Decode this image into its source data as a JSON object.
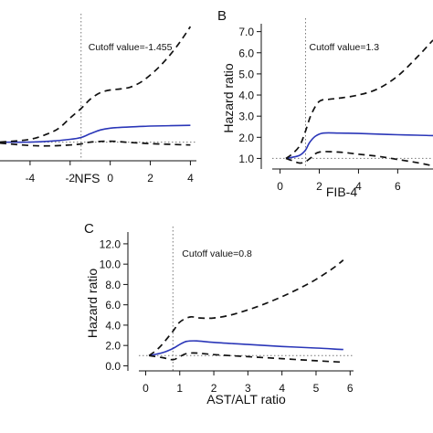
{
  "chart_data": [
    {
      "panel_label": "",
      "type": "line",
      "title": "",
      "xlabel": "NFS",
      "ylabel": "",
      "xlim": [
        -5.5,
        4.3
      ],
      "ylim": [
        0,
        7.4
      ],
      "xticks": [
        -4,
        -2,
        0,
        2,
        4
      ],
      "yticks": [],
      "cutoff": {
        "x": -1.455,
        "label": "Cutoff value=-1.455"
      },
      "reference_y": 1.0,
      "series": [
        {
          "role": "estimate",
          "x": [
            -5.5,
            -4,
            -3,
            -2,
            -1.455,
            -1,
            -0.5,
            0,
            1,
            2,
            3,
            4
          ],
          "values": [
            1.0,
            1.0,
            1.05,
            1.15,
            1.25,
            1.45,
            1.65,
            1.75,
            1.82,
            1.86,
            1.88,
            1.9
          ]
        },
        {
          "role": "upper",
          "x": [
            -5.5,
            -4,
            -3,
            -2.5,
            -2,
            -1.455,
            -1,
            -0.5,
            0,
            0.5,
            1,
            1.5,
            2,
            2.5,
            3,
            3.5,
            4
          ],
          "values": [
            1.0,
            1.15,
            1.5,
            1.8,
            2.3,
            2.8,
            3.3,
            3.65,
            3.8,
            3.85,
            3.95,
            4.2,
            4.6,
            5.1,
            5.7,
            6.4,
            7.2
          ]
        },
        {
          "role": "lower",
          "x": [
            -5.5,
            -4,
            -3,
            -2,
            -1.455,
            -1,
            0,
            1,
            2,
            3,
            4
          ],
          "values": [
            0.95,
            0.82,
            0.8,
            0.85,
            0.9,
            1.0,
            1.05,
            0.98,
            0.92,
            0.88,
            0.85
          ]
        }
      ]
    },
    {
      "panel_label": "B",
      "type": "line",
      "title": "",
      "xlabel": "FIB-4",
      "ylabel": "Hazard ratio",
      "xlim": [
        -0.4,
        7.8
      ],
      "ylim": [
        0.5,
        7.2
      ],
      "xticks": [
        0,
        2,
        4,
        6
      ],
      "yticks": [
        1.0,
        2.0,
        3.0,
        4.0,
        5.0,
        6.0,
        7.0
      ],
      "ytick_labels": [
        "1.0",
        "2.0",
        "3.0",
        "4.0",
        "5.0",
        "6.0",
        "7.0"
      ],
      "cutoff": {
        "x": 1.3,
        "label": "Cutoff value=1.3"
      },
      "reference_y": 1.0,
      "series": [
        {
          "role": "estimate",
          "x": [
            0.3,
            0.6,
            1.0,
            1.3,
            1.5,
            1.8,
            2.2,
            3,
            4,
            5,
            6,
            7,
            7.8
          ],
          "values": [
            1.0,
            1.05,
            1.15,
            1.4,
            1.75,
            2.05,
            2.2,
            2.2,
            2.18,
            2.15,
            2.12,
            2.1,
            2.08
          ]
        },
        {
          "role": "upper",
          "x": [
            0.3,
            0.6,
            1.0,
            1.3,
            1.6,
            2.0,
            2.5,
            3,
            4,
            5,
            6,
            7,
            7.8
          ],
          "values": [
            1.0,
            1.2,
            1.6,
            2.3,
            3.1,
            3.7,
            3.8,
            3.85,
            4.0,
            4.3,
            4.9,
            5.8,
            6.6
          ]
        },
        {
          "role": "lower",
          "x": [
            0.3,
            0.6,
            1.0,
            1.3,
            1.6,
            2.0,
            3,
            4,
            5,
            6,
            7,
            7.8
          ],
          "values": [
            1.0,
            0.9,
            0.78,
            0.85,
            1.05,
            1.3,
            1.3,
            1.2,
            1.1,
            0.95,
            0.8,
            0.65
          ]
        }
      ]
    },
    {
      "panel_label": "C",
      "type": "line",
      "title": "",
      "xlabel": "AST/ALT ratio",
      "ylabel": "Hazard ratio",
      "xlim": [
        -0.2,
        6.1
      ],
      "ylim": [
        -0.5,
        12.8
      ],
      "xticks": [
        0,
        1,
        2,
        3,
        4,
        5,
        6
      ],
      "yticks": [
        0,
        2,
        4,
        6,
        8,
        10,
        12
      ],
      "ytick_labels": [
        "0.0",
        "2.0",
        "4.0",
        "6.0",
        "8.0",
        "10.0",
        "12.0"
      ],
      "cutoff": {
        "x": 0.8,
        "label": "Cutoff value=0.8"
      },
      "reference_y": 1.0,
      "series": [
        {
          "role": "estimate",
          "x": [
            0.1,
            0.5,
            0.8,
            1.0,
            1.2,
            1.5,
            2,
            3,
            4,
            5,
            5.8
          ],
          "values": [
            1.0,
            1.3,
            1.7,
            2.1,
            2.4,
            2.45,
            2.3,
            2.1,
            1.9,
            1.75,
            1.6
          ]
        },
        {
          "role": "upper",
          "x": [
            0.1,
            0.4,
            0.8,
            1.0,
            1.3,
            1.6,
            2.0,
            2.5,
            3.0,
            3.5,
            4.0,
            4.5,
            5.0,
            5.5,
            5.8
          ],
          "values": [
            1.0,
            1.8,
            3.4,
            4.3,
            4.8,
            4.7,
            4.7,
            5.0,
            5.5,
            6.1,
            6.8,
            7.6,
            8.5,
            9.6,
            10.4
          ]
        },
        {
          "role": "lower",
          "x": [
            0.1,
            0.5,
            0.8,
            1.0,
            1.2,
            1.5,
            2,
            3,
            4,
            5,
            5.8
          ],
          "values": [
            1.0,
            0.8,
            0.6,
            0.9,
            1.2,
            1.25,
            1.1,
            0.9,
            0.7,
            0.5,
            0.35
          ]
        }
      ]
    }
  ]
}
